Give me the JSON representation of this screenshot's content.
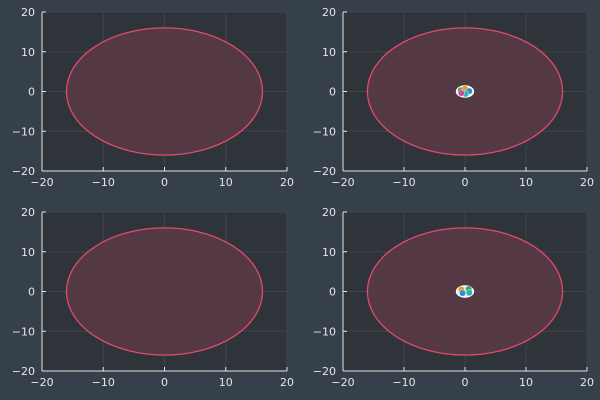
{
  "figure": {
    "colors": {
      "background": "#36404a",
      "plot_area": "#2f343a",
      "grid": "#3e454d",
      "axis": "#e6e6e6",
      "tick_text": "#e6e6e6",
      "circle_fill": "#5a3a45",
      "circle_stroke": "#e34a6a"
    }
  },
  "chart_data": [
    {
      "type": "scatter",
      "panel": "top-left",
      "title": "",
      "xlabel": "",
      "ylabel": "",
      "xlim": [
        -20,
        20
      ],
      "ylim": [
        -20,
        20
      ],
      "x_ticks": [
        -20,
        -10,
        0,
        10,
        20
      ],
      "y_ticks": [
        -20,
        -10,
        0,
        10,
        20
      ],
      "grid": true,
      "shapes": [
        {
          "kind": "circle",
          "center": [
            0,
            0
          ],
          "radius": 16,
          "fill": "#5a3a45",
          "stroke": "#e34a6a"
        }
      ],
      "points": []
    },
    {
      "type": "scatter",
      "panel": "top-right",
      "title": "",
      "xlabel": "",
      "ylabel": "",
      "xlim": [
        -20,
        20
      ],
      "ylim": [
        -20,
        20
      ],
      "x_ticks": [
        -20,
        -10,
        0,
        10,
        20
      ],
      "y_ticks": [
        -20,
        -10,
        0,
        10,
        20
      ],
      "grid": true,
      "shapes": [
        {
          "kind": "circle",
          "center": [
            0,
            0
          ],
          "radius": 16,
          "fill": "#5a3a45",
          "stroke": "#e34a6a"
        },
        {
          "kind": "circle",
          "center": [
            0,
            0
          ],
          "radius": 1.4,
          "fill": "#f2f2f2",
          "stroke": "#ffffff"
        }
      ],
      "points": [
        {
          "x": -0.7,
          "y": 0.3,
          "color": "#3aa655"
        },
        {
          "x": 0.0,
          "y": 0.7,
          "color": "#e29b2a"
        },
        {
          "x": 0.7,
          "y": 0.1,
          "color": "#2f8fd6"
        },
        {
          "x": 0.1,
          "y": -0.6,
          "color": "#2bb5b5"
        },
        {
          "x": -0.6,
          "y": -0.4,
          "color": "#c84c9c"
        }
      ]
    },
    {
      "type": "scatter",
      "panel": "bottom-left",
      "title": "",
      "xlabel": "",
      "ylabel": "",
      "xlim": [
        -20,
        20
      ],
      "ylim": [
        -20,
        20
      ],
      "x_ticks": [
        -20,
        -10,
        0,
        10,
        20
      ],
      "y_ticks": [
        -20,
        -10,
        0,
        10,
        20
      ],
      "grid": true,
      "shapes": [
        {
          "kind": "circle",
          "center": [
            0,
            0
          ],
          "radius": 16,
          "fill": "#5a3a45",
          "stroke": "#e34a6a"
        }
      ],
      "points": []
    },
    {
      "type": "scatter",
      "panel": "bottom-right",
      "title": "",
      "xlabel": "",
      "ylabel": "",
      "xlim": [
        -20,
        20
      ],
      "ylim": [
        -20,
        20
      ],
      "x_ticks": [
        -20,
        -10,
        0,
        10,
        20
      ],
      "y_ticks": [
        -20,
        -10,
        0,
        10,
        20
      ],
      "grid": true,
      "shapes": [
        {
          "kind": "circle",
          "center": [
            0,
            0
          ],
          "radius": 16,
          "fill": "#5a3a45",
          "stroke": "#e34a6a"
        },
        {
          "kind": "circle",
          "center": [
            0,
            0
          ],
          "radius": 1.4,
          "fill": "#f2f2f2",
          "stroke": "#ffffff"
        }
      ],
      "points": [
        {
          "x": -0.6,
          "y": 0.5,
          "color": "#e29b2a"
        },
        {
          "x": 0.6,
          "y": 0.6,
          "color": "#3aa655"
        },
        {
          "x": -0.4,
          "y": -0.4,
          "color": "#2f8fd6"
        },
        {
          "x": 0.7,
          "y": -0.3,
          "color": "#2bb5b5"
        }
      ]
    }
  ]
}
